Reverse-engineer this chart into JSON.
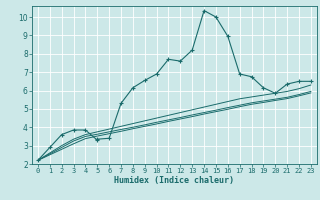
{
  "xlabel": "Humidex (Indice chaleur)",
  "bg_color": "#cce8e8",
  "grid_color": "#ffffff",
  "line_color": "#1a6b6b",
  "xlim": [
    -0.5,
    23.5
  ],
  "ylim": [
    2,
    10.6
  ],
  "xticks": [
    0,
    1,
    2,
    3,
    4,
    5,
    6,
    7,
    8,
    9,
    10,
    11,
    12,
    13,
    14,
    15,
    16,
    17,
    18,
    19,
    20,
    21,
    22,
    23
  ],
  "yticks": [
    2,
    3,
    4,
    5,
    6,
    7,
    8,
    9,
    10
  ],
  "main_line": {
    "x": [
      0,
      1,
      2,
      3,
      4,
      5,
      5,
      6,
      7,
      8,
      9,
      10,
      11,
      12,
      13,
      14,
      15,
      16,
      17,
      18,
      19,
      20,
      21,
      22,
      23
    ],
    "y": [
      2.2,
      2.9,
      3.6,
      3.85,
      3.85,
      3.3,
      3.35,
      3.4,
      5.3,
      6.15,
      6.55,
      6.9,
      7.7,
      7.6,
      8.2,
      10.35,
      10.0,
      8.95,
      6.9,
      6.75,
      6.15,
      5.85,
      6.35,
      6.5,
      6.5
    ]
  },
  "line2": {
    "x": [
      0,
      1,
      2,
      3,
      4,
      5,
      6,
      7,
      8,
      9,
      10,
      11,
      12,
      13,
      14,
      15,
      16,
      17,
      18,
      19,
      20,
      21,
      22,
      23
    ],
    "y": [
      2.2,
      2.6,
      3.0,
      3.35,
      3.6,
      3.75,
      3.9,
      4.05,
      4.2,
      4.35,
      4.5,
      4.65,
      4.8,
      4.95,
      5.1,
      5.25,
      5.4,
      5.55,
      5.65,
      5.75,
      5.85,
      5.95,
      6.1,
      6.3
    ]
  },
  "line3": {
    "x": [
      0,
      1,
      2,
      3,
      4,
      5,
      6,
      7,
      8,
      9,
      10,
      11,
      12,
      13,
      14,
      15,
      16,
      17,
      18,
      19,
      20,
      21,
      22,
      23
    ],
    "y": [
      2.2,
      2.55,
      2.9,
      3.25,
      3.5,
      3.62,
      3.75,
      3.88,
      4.0,
      4.13,
      4.27,
      4.4,
      4.53,
      4.67,
      4.8,
      4.93,
      5.07,
      5.2,
      5.33,
      5.43,
      5.53,
      5.63,
      5.78,
      5.95
    ]
  },
  "line4": {
    "x": [
      0,
      1,
      2,
      3,
      4,
      5,
      6,
      7,
      8,
      9,
      10,
      11,
      12,
      13,
      14,
      15,
      16,
      17,
      18,
      19,
      20,
      21,
      22,
      23
    ],
    "y": [
      2.2,
      2.5,
      2.8,
      3.1,
      3.38,
      3.52,
      3.65,
      3.78,
      3.92,
      4.05,
      4.18,
      4.32,
      4.45,
      4.58,
      4.72,
      4.85,
      4.98,
      5.12,
      5.25,
      5.35,
      5.46,
      5.56,
      5.71,
      5.87
    ]
  }
}
